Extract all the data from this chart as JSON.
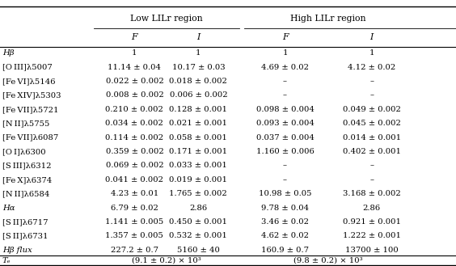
{
  "col_headers_top": [
    "Low LILr region",
    "High LILr region"
  ],
  "col_headers_mid": [
    "F",
    "I",
    "F",
    "I"
  ],
  "row_labels": [
    "Hβ",
    "[O III]λ5007",
    "[Fe VI]λ5146",
    "[Fe XIV]λ5303",
    "[Fe VII]λ5721",
    "[N II]λ5755",
    "[Fe VII]λ6087",
    "[O I]λ6300",
    "[S III]λ6312",
    "[Fe X]λ6374",
    "[N II]λ6584",
    "Hα",
    "[S II]λ6717",
    "[S II]λ6731",
    "Hβ flux"
  ],
  "data": [
    [
      "1",
      "1",
      "1",
      "1"
    ],
    [
      "11.14 ± 0.04",
      "10.17 ± 0.03",
      "4.69 ± 0.02",
      "4.12 ± 0.02"
    ],
    [
      "0.022 ± 0.002",
      "0.018 ± 0.002",
      "–",
      "–"
    ],
    [
      "0.008 ± 0.002",
      "0.006 ± 0.002",
      "–",
      "–"
    ],
    [
      "0.210 ± 0.002",
      "0.128 ± 0.001",
      "0.098 ± 0.004",
      "0.049 ± 0.002"
    ],
    [
      "0.034 ± 0.002",
      "0.021 ± 0.001",
      "0.093 ± 0.004",
      "0.045 ± 0.002"
    ],
    [
      "0.114 ± 0.002",
      "0.058 ± 0.001",
      "0.037 ± 0.004",
      "0.014 ± 0.001"
    ],
    [
      "0.359 ± 0.002",
      "0.171 ± 0.001",
      "1.160 ± 0.006",
      "0.402 ± 0.001"
    ],
    [
      "0.069 ± 0.002",
      "0.033 ± 0.001",
      "–",
      "–"
    ],
    [
      "0.041 ± 0.002",
      "0.019 ± 0.001",
      "–",
      "–"
    ],
    [
      "4.23 ± 0.01",
      "1.765 ± 0.002",
      "10.98 ± 0.05",
      "3.168 ± 0.002"
    ],
    [
      "6.79 ± 0.02",
      "2.86",
      "9.78 ± 0.04",
      "2.86"
    ],
    [
      "1.141 ± 0.005",
      "0.450 ± 0.001",
      "3.46 ± 0.02",
      "0.921 ± 0.001"
    ],
    [
      "1.357 ± 0.005",
      "0.532 ± 0.001",
      "4.62 ± 0.02",
      "1.222 ± 0.001"
    ],
    [
      "227.2 ± 0.7",
      "5160 ± 40",
      "160.9 ± 0.7",
      "13700 ± 100"
    ]
  ],
  "footer_label": "Tₑ",
  "footer_low": "(9.1 ± 0.2) × 10³",
  "footer_high": "(9.8 ± 0.2) × 10³",
  "bg_color": "#ffffff",
  "text_color": "#000000",
  "font_size": 7.2,
  "header_font_size": 7.8
}
